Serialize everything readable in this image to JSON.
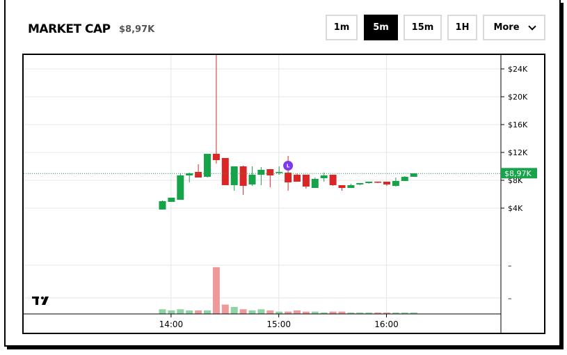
{
  "header": {
    "title": "MARKET CAP",
    "value": "$8,97K"
  },
  "timeframes": [
    {
      "label": "1m",
      "active": false
    },
    {
      "label": "5m",
      "active": true
    },
    {
      "label": "15m",
      "active": false
    },
    {
      "label": "1H",
      "active": false
    }
  ],
  "more_label": "More",
  "chart_data": {
    "type": "candlestick",
    "x_ticks": [
      "14:00",
      "15:00",
      "16:00"
    ],
    "y_ticks": [
      "$24K",
      "$20K",
      "$16K",
      "$12K",
      "$8K",
      "$4K"
    ],
    "y_range": [
      0,
      26000
    ],
    "last_price_label": "$8,97K",
    "last_price": 8970,
    "marker_label": "L",
    "volume_axis_ticks": [
      "–",
      "–"
    ],
    "colors": {
      "up": "#16a34a",
      "down": "#dc2626",
      "vol_up": "#8fd4a4",
      "vol_down": "#ef9a9a",
      "price_line": "#16a34a",
      "marker": "#7c3aed",
      "grid": "#e6e6e6"
    },
    "candles": [
      {
        "t": "13:55",
        "o": 3800,
        "h": 5100,
        "l": 3800,
        "c": 5000,
        "v": 4
      },
      {
        "t": "14:00",
        "o": 4900,
        "h": 5500,
        "l": 4900,
        "c": 5500,
        "v": 3
      },
      {
        "t": "14:05",
        "o": 5200,
        "h": 9000,
        "l": 5200,
        "c": 8700,
        "v": 4
      },
      {
        "t": "14:10",
        "o": 8700,
        "h": 9100,
        "l": 7700,
        "c": 9000,
        "v": 3
      },
      {
        "t": "14:15",
        "o": 9200,
        "h": 10300,
        "l": 8400,
        "c": 8400,
        "v": 3
      },
      {
        "t": "14:20",
        "o": 8500,
        "h": 11700,
        "l": 8400,
        "c": 11800,
        "v": 3
      },
      {
        "t": "14:25",
        "o": 11800,
        "h": 36000,
        "l": 10400,
        "c": 10900,
        "v": 40
      },
      {
        "t": "14:30",
        "o": 11200,
        "h": 11200,
        "l": 7300,
        "c": 7300,
        "v": 8
      },
      {
        "t": "14:35",
        "o": 7300,
        "h": 10000,
        "l": 6500,
        "c": 10000,
        "v": 6
      },
      {
        "t": "14:40",
        "o": 10000,
        "h": 10100,
        "l": 5900,
        "c": 7200,
        "v": 4
      },
      {
        "t": "14:45",
        "o": 7400,
        "h": 10000,
        "l": 7200,
        "c": 8800,
        "v": 3
      },
      {
        "t": "14:50",
        "o": 8800,
        "h": 9900,
        "l": 7300,
        "c": 9500,
        "v": 4
      },
      {
        "t": "14:55",
        "o": 9600,
        "h": 9600,
        "l": 7000,
        "c": 8700,
        "v": 3
      },
      {
        "t": "15:00",
        "o": 9100,
        "h": 10000,
        "l": 8800,
        "c": 9200,
        "v": 2
      },
      {
        "t": "15:05",
        "o": 9100,
        "h": 11500,
        "l": 6500,
        "c": 7700,
        "v": 2
      },
      {
        "t": "15:10",
        "o": 8800,
        "h": 9000,
        "l": 7800,
        "c": 7800,
        "v": 3
      },
      {
        "t": "15:15",
        "o": 8800,
        "h": 8800,
        "l": 6800,
        "c": 7100,
        "v": 2
      },
      {
        "t": "15:20",
        "o": 6900,
        "h": 8400,
        "l": 6900,
        "c": 8200,
        "v": 2
      },
      {
        "t": "15:25",
        "o": 8300,
        "h": 9100,
        "l": 7800,
        "c": 8700,
        "v": 1
      },
      {
        "t": "15:30",
        "o": 8800,
        "h": 8800,
        "l": 7200,
        "c": 7300,
        "v": 2
      },
      {
        "t": "15:35",
        "o": 7300,
        "h": 7300,
        "l": 6500,
        "c": 6900,
        "v": 2
      },
      {
        "t": "15:40",
        "o": 6900,
        "h": 7500,
        "l": 6900,
        "c": 7300,
        "v": 1
      },
      {
        "t": "15:45",
        "o": 7400,
        "h": 7600,
        "l": 7300,
        "c": 7600,
        "v": 1
      },
      {
        "t": "15:50",
        "o": 7600,
        "h": 7800,
        "l": 7500,
        "c": 7800,
        "v": 1
      },
      {
        "t": "15:55",
        "o": 7800,
        "h": 7800,
        "l": 7600,
        "c": 7700,
        "v": 1
      },
      {
        "t": "16:00",
        "o": 7800,
        "h": 7800,
        "l": 7200,
        "c": 7400,
        "v": 1
      },
      {
        "t": "16:05",
        "o": 7200,
        "h": 8400,
        "l": 7100,
        "c": 7900,
        "v": 1
      },
      {
        "t": "16:10",
        "o": 7900,
        "h": 8600,
        "l": 7900,
        "c": 8500,
        "v": 1
      },
      {
        "t": "16:15",
        "o": 8500,
        "h": 9000,
        "l": 8500,
        "c": 9000,
        "v": 1
      }
    ]
  }
}
